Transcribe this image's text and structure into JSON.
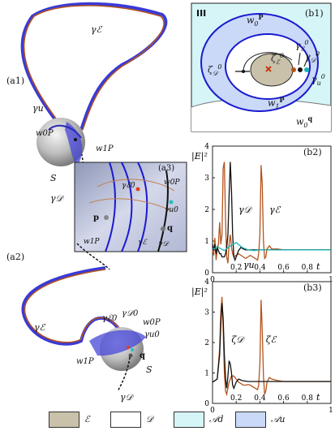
{
  "figure": {
    "panel_labels": {
      "a1": "(a1)",
      "a2": "(a2)",
      "a3": "(a3)",
      "b1": "(b1)",
      "b2": "(b2)",
      "b3": "(b3)"
    },
    "b1": {
      "region_label": "III",
      "labels": {
        "w0P": "w",
        "w0P_sub": "0",
        "w0P_sup": "P",
        "w1P": "w",
        "w1P_sub": "1",
        "w1P_sup": "P",
        "w0q": "w",
        "w0q_sub": "0",
        "w0q_sup": "q",
        "zetaD": "ζ",
        "zetaD_sub": "𝒟",
        "zetaD_sup": "0",
        "zetaE": "ζ",
        "zetaE_sub": "ℰ",
        "zetaE_sup": "0",
        "gammaE": "γ",
        "gammaE_sub": "ℰ",
        "gammaE_sup": "0",
        "gammaD": "γ",
        "gammaD_sub": "𝒟",
        "gammaD_sup": "0",
        "gammaU": "γ",
        "gammaU_sub": "u",
        "gammaU_sup": "0"
      }
    },
    "a_labels": {
      "gamma_E_top": "γℰ",
      "gamma_u": "γu",
      "w0P": "w0P",
      "w1P": "w1P",
      "S": "S",
      "gamma_D": "γ𝒟",
      "gamma_E_bottom": "γℰ",
      "gamma_E0": "γℰ0",
      "gamma_D0": "γ𝒟0",
      "w0P_b": "w0P",
      "gamma_u0": "γu0",
      "q": "q",
      "w1P_b": "w1P",
      "S_b": "S",
      "gamma_D_b": "γ𝒟"
    },
    "a3_labels": {
      "w0P": "w0P",
      "gamma_E0": "γℰ0",
      "gamma_u0": "γu0",
      "p": "p",
      "q": "q",
      "w1P": "w1P",
      "gammaE": "γℰ",
      "gammaD": "γ𝒟"
    }
  },
  "chart_data": [
    {
      "id": "b2",
      "type": "line",
      "ylabel": "|E|²",
      "xlabel": "t",
      "xlim": [
        0,
        1
      ],
      "ylim": [
        0,
        4
      ],
      "xticks": [
        "0",
        "0.2",
        "0.4",
        "0.6",
        "0.8",
        "1"
      ],
      "yticks": [
        "0",
        "1",
        "2",
        "3",
        "4"
      ],
      "annotations": [
        "γ𝒟",
        "γℰ",
        "γu"
      ],
      "series": [
        {
          "name": "γℰ",
          "color": "#b5541c",
          "x": [
            0,
            0.01,
            0.02,
            0.03,
            0.04,
            0.05,
            0.06,
            0.07,
            0.08,
            0.09,
            0.1,
            0.11,
            0.12,
            0.13,
            0.14,
            0.15,
            0.16,
            0.17,
            0.18,
            0.2,
            0.22,
            0.24,
            0.26,
            0.28,
            0.3,
            0.32,
            0.34,
            0.36,
            0.38,
            0.39,
            0.4,
            0.41,
            0.42,
            0.43,
            0.44,
            0.45,
            0.46,
            0.48,
            0.5,
            0.55,
            0.6,
            0.7,
            0.8,
            0.9,
            1
          ],
          "y": [
            0.7,
            0.55,
            1.1,
            0.4,
            0.7,
            0.9,
            1.6,
            0.9,
            1.2,
            3.3,
            3.5,
            1.6,
            0.5,
            0.3,
            0.9,
            1.2,
            0.8,
            0.6,
            0.5,
            0.55,
            0.6,
            0.55,
            0.5,
            0.45,
            0.5,
            0.55,
            0.5,
            0.45,
            0.4,
            0.6,
            1.2,
            3.4,
            2.8,
            1.0,
            0.45,
            0.5,
            0.75,
            0.85,
            0.75,
            0.75,
            0.72,
            0.72,
            0.72,
            0.72,
            0.72
          ]
        },
        {
          "name": "γ𝒟",
          "color": "#111111",
          "x": [
            0,
            0.01,
            0.02,
            0.03,
            0.04,
            0.05,
            0.06,
            0.07,
            0.08,
            0.09,
            0.1,
            0.11,
            0.12,
            0.13,
            0.14,
            0.15,
            0.16,
            0.17,
            0.18,
            0.19,
            0.2,
            0.22,
            0.24,
            0.26,
            0.28,
            0.3,
            0.35,
            0.4,
            0.5,
            0.6,
            0.7,
            0.8,
            0.9,
            1
          ],
          "y": [
            0.9,
            0.7,
            0.9,
            0.6,
            0.8,
            0.7,
            0.6,
            0.6,
            0.5,
            0.5,
            0.5,
            0.6,
            0.8,
            1.2,
            2.4,
            3.5,
            2.6,
            1.2,
            0.5,
            0.4,
            0.5,
            0.7,
            0.8,
            0.75,
            0.72,
            0.72,
            0.72,
            0.72,
            0.72,
            0.72,
            0.72,
            0.72,
            0.72,
            0.72
          ]
        },
        {
          "name": "γu",
          "color": "#19b3b3",
          "x": [
            0,
            0.05,
            0.1,
            0.15,
            0.2,
            0.25,
            0.3,
            0.35,
            0.4,
            0.5,
            0.6,
            0.7,
            0.8,
            0.9,
            1
          ],
          "y": [
            0.75,
            0.8,
            0.7,
            0.85,
            0.95,
            0.8,
            0.72,
            0.7,
            0.72,
            0.72,
            0.72,
            0.72,
            0.72,
            0.72,
            0.72
          ]
        }
      ]
    },
    {
      "id": "b3",
      "type": "line",
      "ylabel": "|E|²",
      "xlabel": "t",
      "xlim": [
        0,
        1
      ],
      "ylim": [
        0,
        4
      ],
      "xticks": [
        "0",
        "0.2",
        "0.4",
        "0.6",
        "0.8",
        "1"
      ],
      "yticks": [
        "0",
        "1",
        "2",
        "3",
        "4"
      ],
      "annotations": [
        "ζ𝒟",
        "ζℰ"
      ],
      "series": [
        {
          "name": "ζℰ",
          "color": "#b5541c",
          "x": [
            0,
            0.02,
            0.04,
            0.06,
            0.07,
            0.08,
            0.09,
            0.1,
            0.11,
            0.12,
            0.14,
            0.16,
            0.18,
            0.2,
            0.22,
            0.24,
            0.26,
            0.28,
            0.3,
            0.32,
            0.34,
            0.36,
            0.38,
            0.39,
            0.4,
            0.41,
            0.42,
            0.43,
            0.44,
            0.45,
            0.46,
            0.48,
            0.5,
            0.55,
            0.6,
            0.7,
            0.8,
            0.9,
            1
          ],
          "y": [
            0.7,
            0.75,
            0.8,
            1.8,
            3.0,
            3.5,
            2.5,
            1.0,
            0.4,
            0.3,
            0.7,
            0.9,
            0.9,
            0.8,
            0.7,
            0.65,
            0.6,
            0.6,
            0.62,
            0.6,
            0.55,
            0.5,
            0.45,
            0.6,
            1.3,
            3.4,
            2.4,
            0.9,
            0.3,
            0.4,
            0.7,
            0.85,
            0.8,
            0.75,
            0.72,
            0.72,
            0.72,
            0.72,
            0.72
          ]
        },
        {
          "name": "ζ𝒟",
          "color": "#111111",
          "x": [
            0,
            0.02,
            0.04,
            0.06,
            0.07,
            0.08,
            0.09,
            0.1,
            0.11,
            0.12,
            0.13,
            0.14,
            0.15,
            0.16,
            0.17,
            0.18,
            0.2,
            0.22,
            0.25,
            0.3,
            0.4,
            0.5,
            0.6,
            0.7,
            0.8,
            0.9,
            1
          ],
          "y": [
            0.7,
            0.75,
            0.8,
            1.6,
            2.6,
            3.3,
            2.8,
            1.6,
            0.8,
            0.5,
            0.9,
            1.4,
            1.3,
            1.0,
            0.6,
            0.5,
            0.7,
            0.8,
            0.75,
            0.72,
            0.72,
            0.72,
            0.72,
            0.72,
            0.72,
            0.72,
            0.72
          ]
        }
      ]
    }
  ],
  "legend": [
    {
      "label": "ℰ",
      "color": "#c9c1aa"
    },
    {
      "label": "𝒟",
      "color": "#ffffff"
    },
    {
      "label": "𝒜d",
      "color": "#d6f5f7"
    },
    {
      "label": "𝒜u",
      "color": "#c9d9f7"
    }
  ]
}
